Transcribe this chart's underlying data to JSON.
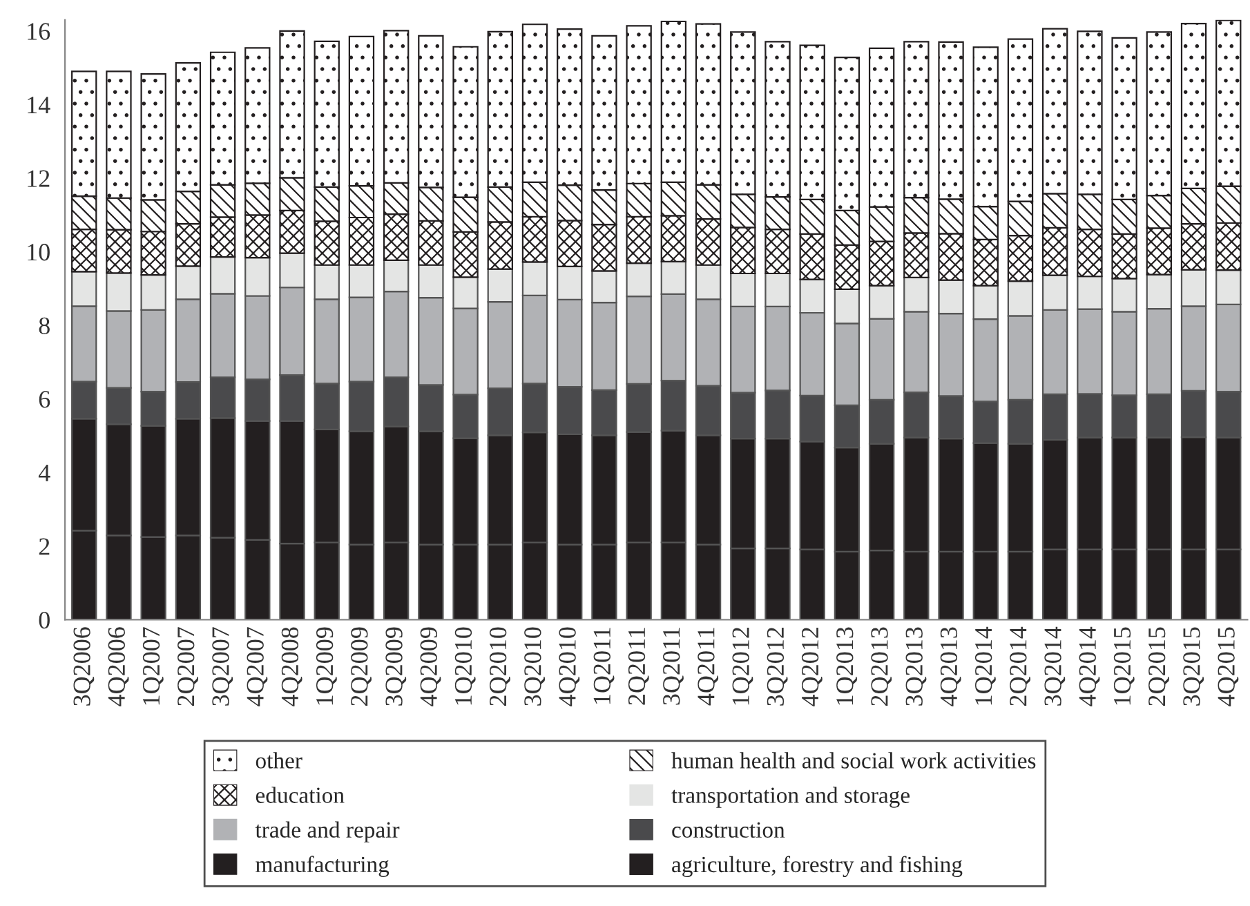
{
  "chart_data": {
    "type": "bar",
    "stacked": true,
    "legend": "bottom",
    "grid": false,
    "categories": [
      "3Q2006",
      "4Q2006",
      "1Q2007",
      "2Q2007",
      "3Q2007",
      "4Q2007",
      "4Q2008",
      "1Q2009",
      "2Q2009",
      "3Q2009",
      "4Q2009",
      "1Q2010",
      "2Q2010",
      "3Q2010",
      "4Q2010",
      "1Q2011",
      "2Q2011",
      "3Q2011",
      "4Q2011",
      "1Q2012",
      "3Q2012",
      "4Q2012",
      "1Q2013",
      "2Q2013",
      "3Q2013",
      "4Q2013",
      "1Q2014",
      "2Q2014",
      "3Q2014",
      "4Q2014",
      "1Q2015",
      "2Q2015",
      "3Q2015",
      "4Q2015"
    ],
    "ylim": [
      0,
      16.3
    ],
    "yticks": [
      0,
      2,
      4,
      6,
      8,
      10,
      12,
      14,
      16
    ],
    "series": [
      {
        "name": "agriculture, forestry and fishing",
        "color": "#231f20",
        "values": [
          2.42,
          2.29,
          2.25,
          2.29,
          2.23,
          2.17,
          2.07,
          2.1,
          2.04,
          2.1,
          2.04,
          2.04,
          2.04,
          2.1,
          2.04,
          2.04,
          2.1,
          2.1,
          2.04,
          1.94,
          1.94,
          1.91,
          1.85,
          1.88,
          1.85,
          1.85,
          1.85,
          1.85,
          1.91,
          1.91,
          1.91,
          1.91,
          1.91,
          1.91
        ]
      },
      {
        "name": "manufacturing",
        "color": "#231f20",
        "values": [
          3.04,
          3.02,
          3.02,
          3.17,
          3.25,
          3.23,
          3.33,
          3.07,
          3.08,
          3.15,
          3.08,
          2.89,
          2.97,
          2.99,
          3.0,
          2.97,
          3.0,
          3.04,
          2.97,
          2.98,
          2.98,
          2.93,
          2.83,
          2.9,
          3.1,
          3.07,
          2.95,
          2.93,
          2.98,
          3.04,
          3.04,
          3.04,
          3.05,
          3.04
        ]
      },
      {
        "name": "construction",
        "color": "#4a4a4c",
        "values": [
          1.01,
          0.99,
          0.93,
          1.0,
          1.11,
          1.13,
          1.25,
          1.25,
          1.35,
          1.34,
          1.26,
          1.19,
          1.28,
          1.33,
          1.29,
          1.23,
          1.31,
          1.36,
          1.35,
          1.25,
          1.31,
          1.25,
          1.15,
          1.2,
          1.23,
          1.16,
          1.13,
          1.2,
          1.24,
          1.19,
          1.15,
          1.18,
          1.26,
          1.25
        ]
      },
      {
        "name": "trade and repair",
        "color": "#b1b2b5",
        "values": [
          2.05,
          2.09,
          2.22,
          2.25,
          2.27,
          2.27,
          2.38,
          2.29,
          2.29,
          2.33,
          2.37,
          2.34,
          2.35,
          2.39,
          2.37,
          2.38,
          2.38,
          2.35,
          2.35,
          2.34,
          2.28,
          2.25,
          2.22,
          2.2,
          2.19,
          2.24,
          2.24,
          2.28,
          2.29,
          2.3,
          2.27,
          2.32,
          2.3,
          2.37
        ]
      },
      {
        "name": "transportation and storage",
        "color": "#e4e5e4",
        "values": [
          0.94,
          1.03,
          0.95,
          0.9,
          1.0,
          1.04,
          0.93,
          0.93,
          0.88,
          0.85,
          0.89,
          0.85,
          0.89,
          0.91,
          0.9,
          0.86,
          0.9,
          0.88,
          0.93,
          0.9,
          0.9,
          0.91,
          0.93,
          0.9,
          0.93,
          0.91,
          0.91,
          0.94,
          0.94,
          0.89,
          0.9,
          0.93,
          0.99,
          0.93
        ]
      },
      {
        "name": "education",
        "color": "#231f20",
        "values": [
          1.15,
          1.18,
          1.18,
          1.15,
          1.08,
          1.16,
          1.16,
          1.19,
          1.29,
          1.25,
          1.2,
          1.23,
          1.28,
          1.23,
          1.25,
          1.26,
          1.26,
          1.25,
          1.25,
          1.25,
          1.2,
          1.23,
          1.2,
          1.2,
          1.21,
          1.26,
          1.25,
          1.24,
          1.29,
          1.28,
          1.21,
          1.26,
          1.25,
          1.28
        ]
      },
      {
        "name": "human health and social work activities",
        "color": "#231f20",
        "values": [
          0.9,
          0.86,
          0.86,
          0.88,
          0.88,
          0.86,
          0.89,
          0.93,
          0.86,
          0.85,
          0.91,
          0.94,
          0.95,
          0.94,
          0.96,
          0.94,
          0.9,
          0.91,
          0.93,
          0.9,
          0.88,
          0.94,
          0.94,
          0.94,
          0.96,
          0.94,
          0.9,
          0.93,
          0.93,
          0.95,
          0.94,
          0.89,
          0.96,
          1.0
        ]
      },
      {
        "name": "other",
        "color": "#231f20",
        "values": [
          3.39,
          3.44,
          3.42,
          3.49,
          3.6,
          3.68,
          3.99,
          3.96,
          4.06,
          4.14,
          4.12,
          4.09,
          4.22,
          4.29,
          4.24,
          4.19,
          4.29,
          4.37,
          4.37,
          4.41,
          4.22,
          4.19,
          4.16,
          4.31,
          4.24,
          4.27,
          4.33,
          4.41,
          4.48,
          4.43,
          4.39,
          4.44,
          4.48,
          4.51
        ]
      }
    ]
  }
}
